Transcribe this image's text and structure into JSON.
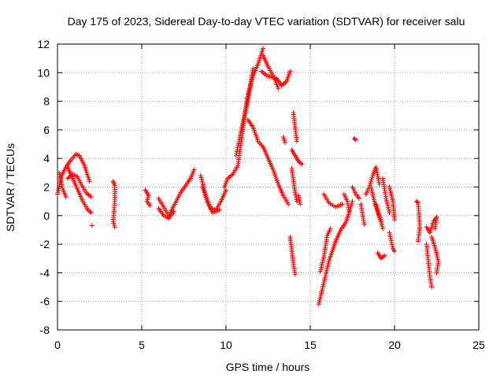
{
  "chart_data": {
    "type": "scatter",
    "title": "Day 175 of 2023, Sidereal Day-to-day VTEC variation (SDTVAR) for receiver salu",
    "xlabel": "GPS time / hours",
    "ylabel": "SDTVAR / TECUs",
    "xlim": [
      0,
      25
    ],
    "ylim": [
      -8,
      12
    ],
    "xticks": [
      0,
      5,
      10,
      15,
      20,
      25
    ],
    "yticks": [
      -8,
      -6,
      -4,
      -2,
      0,
      2,
      4,
      6,
      8,
      10,
      12
    ],
    "grid": true,
    "marker": "+",
    "color": "#ff0000",
    "segments": [
      {
        "x": [
          0.0,
          0.25,
          0.5,
          0.8,
          1.1,
          1.3,
          1.6,
          1.9
        ],
        "y": [
          1.5,
          2.8,
          3.4,
          3.9,
          4.3,
          4.2,
          3.5,
          2.4
        ]
      },
      {
        "x": [
          0.1,
          0.3,
          0.5
        ],
        "y": [
          3.0,
          1.9,
          1.3
        ]
      },
      {
        "x": [
          0.6,
          0.9,
          1.2,
          1.5,
          1.8,
          2.0
        ],
        "y": [
          3.4,
          2.6,
          1.8,
          1.0,
          0.4,
          0.2
        ]
      },
      {
        "x": [
          0.6,
          0.9,
          1.2,
          1.4,
          1.7,
          2.0
        ],
        "y": [
          2.6,
          2.9,
          2.7,
          2.2,
          1.6,
          1.3
        ]
      },
      {
        "x": [
          2.05
        ],
        "y": [
          -0.7
        ]
      },
      {
        "x": [
          3.3,
          3.4,
          3.4,
          3.3,
          3.4
        ],
        "y": [
          2.4,
          2.1,
          1.0,
          -0.4,
          -0.8
        ]
      },
      {
        "x": [
          5.2,
          5.4,
          5.3,
          5.5
        ],
        "y": [
          1.8,
          1.4,
          1.0,
          0.7
        ]
      },
      {
        "x": [
          6.0,
          6.3,
          6.6,
          7.0,
          7.3,
          7.6,
          7.9,
          8.1
        ],
        "y": [
          1.2,
          0.6,
          0.0,
          0.9,
          1.6,
          2.1,
          2.6,
          3.2
        ]
      },
      {
        "x": [
          6.0,
          6.3,
          6.6,
          6.9
        ],
        "y": [
          0.5,
          0.0,
          -0.2,
          0.3
        ]
      },
      {
        "x": [
          8.5,
          8.8,
          9.1,
          9.4,
          9.7,
          10.0
        ],
        "y": [
          2.8,
          1.4,
          0.5,
          0.4,
          1.0,
          1.8
        ]
      },
      {
        "x": [
          8.6,
          8.9,
          9.2,
          9.6
        ],
        "y": [
          2.0,
          0.9,
          0.2,
          0.4
        ]
      },
      {
        "x": [
          9.9,
          10.1,
          10.4,
          10.7,
          10.9,
          11.1,
          11.3,
          11.6,
          11.9,
          12.2
        ],
        "y": [
          2.0,
          2.6,
          2.9,
          3.5,
          5.2,
          7.0,
          8.5,
          9.8,
          10.6,
          11.7
        ]
      },
      {
        "x": [
          10.6,
          10.9,
          11.2,
          11.4,
          11.6
        ],
        "y": [
          4.2,
          6.0,
          7.5,
          8.7,
          10.3
        ]
      },
      {
        "x": [
          11.3,
          11.6,
          11.9,
          12.2,
          12.5,
          12.8,
          13.1,
          13.4,
          13.7
        ],
        "y": [
          6.7,
          6.2,
          5.2,
          4.8,
          4.0,
          3.2,
          2.2,
          1.4,
          0.8
        ]
      },
      {
        "x": [
          12.1,
          12.4,
          12.7,
          13.0,
          13.3,
          13.6,
          13.8
        ],
        "y": [
          10.1,
          9.8,
          9.7,
          9.6,
          9.1,
          9.4,
          10.1
        ]
      },
      {
        "x": [
          12.2,
          12.5,
          12.8,
          13.1
        ],
        "y": [
          11.2,
          10.4,
          9.8,
          8.9
        ]
      },
      {
        "x": [
          13.4,
          13.5
        ],
        "y": [
          5.5,
          5.1
        ]
      },
      {
        "x": [
          14.0,
          14.2
        ],
        "y": [
          7.2,
          5.2
        ]
      },
      {
        "x": [
          13.9,
          14.1,
          14.3,
          14.5
        ],
        "y": [
          4.6,
          4.2,
          3.8,
          3.6
        ]
      },
      {
        "x": [
          13.9,
          14.05,
          14.2
        ],
        "y": [
          3.3,
          2.0,
          1.0
        ]
      },
      {
        "x": [
          14.3,
          14.4
        ],
        "y": [
          1.4,
          0.8
        ]
      },
      {
        "x": [
          13.8,
          13.9,
          14.0,
          14.1
        ],
        "y": [
          -1.5,
          -2.4,
          -3.4,
          -4.1
        ]
      },
      {
        "x": [
          15.5,
          15.7,
          15.9,
          16.1,
          16.3,
          16.5,
          16.8,
          17.1,
          17.3,
          17.5
        ],
        "y": [
          -6.2,
          -5.2,
          -4.2,
          -3.2,
          -2.5,
          -1.8,
          -1.0,
          -0.5,
          0.2,
          1.0
        ]
      },
      {
        "x": [
          15.6,
          15.8,
          16.0,
          16.2
        ],
        "y": [
          -3.9,
          -2.9,
          -1.4,
          -0.9
        ]
      },
      {
        "x": [
          15.8,
          16.1,
          16.5,
          16.9
        ],
        "y": [
          1.5,
          0.9,
          0.6,
          0.8
        ]
      },
      {
        "x": [
          17.0,
          17.2,
          17.3
        ],
        "y": [
          1.5,
          1.0,
          0.3
        ]
      },
      {
        "x": [
          17.6,
          17.7
        ],
        "y": [
          5.4,
          5.3
        ]
      },
      {
        "x": [
          17.5,
          17.7,
          17.9
        ],
        "y": [
          2.0,
          1.5,
          1.2
        ]
      },
      {
        "x": [
          18.0,
          18.2
        ],
        "y": [
          0.8,
          -0.6
        ]
      },
      {
        "x": [
          18.3,
          18.5,
          18.7,
          18.9,
          19.1
        ],
        "y": [
          1.5,
          2.0,
          2.8,
          3.4,
          2.2
        ]
      },
      {
        "x": [
          18.6,
          18.8,
          19.0,
          19.2
        ],
        "y": [
          2.0,
          1.0,
          0.2,
          -0.4
        ]
      },
      {
        "x": [
          18.9,
          19.1,
          19.3
        ],
        "y": [
          0.8,
          0.0,
          -0.9
        ]
      },
      {
        "x": [
          19.3,
          19.5,
          19.7
        ],
        "y": [
          2.6,
          1.2,
          0.2
        ]
      },
      {
        "x": [
          19.0,
          19.2,
          19.4
        ],
        "y": [
          -2.6,
          -3.0,
          -2.8
        ]
      },
      {
        "x": [
          19.7,
          19.9,
          20.0
        ],
        "y": [
          2.0,
          1.0,
          -0.3
        ]
      },
      {
        "x": [
          19.7,
          19.9,
          20.0
        ],
        "y": [
          -1.2,
          -2.3,
          -2.5
        ]
      },
      {
        "x": [
          21.3,
          21.4,
          21.5,
          21.4
        ],
        "y": [
          1.0,
          0.9,
          -0.8,
          -1.8
        ]
      },
      {
        "x": [
          21.9,
          22.1,
          22.3,
          22.5,
          22.4
        ],
        "y": [
          -0.8,
          -1.2,
          -0.4,
          -0.1,
          -0.9
        ]
      },
      {
        "x": [
          21.9,
          22.0,
          22.1,
          22.2
        ],
        "y": [
          -2.0,
          -3.2,
          -4.3,
          -5.0
        ]
      },
      {
        "x": [
          22.2,
          22.4,
          22.6,
          22.5
        ],
        "y": [
          -1.5,
          -2.2,
          -3.2,
          -4.0
        ]
      }
    ]
  }
}
